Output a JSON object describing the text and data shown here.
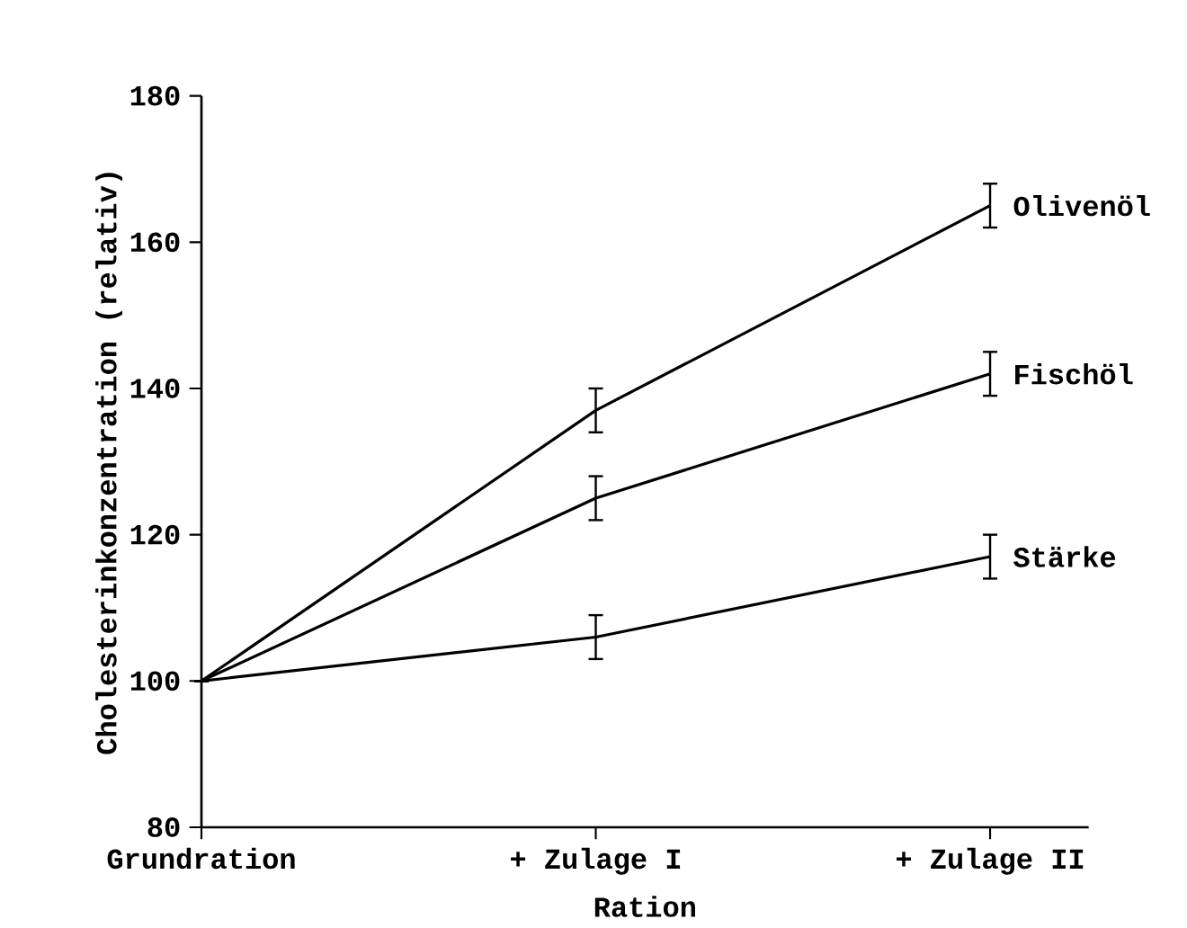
{
  "chart_data": {
    "type": "line",
    "xlabel": "Ration",
    "ylabel": "Cholesterinkonzentration (relativ)",
    "categories": [
      "Grundration",
      "+ Zulage I",
      "+ Zulage II"
    ],
    "series": [
      {
        "name": "Olivenöl",
        "color": "#000000",
        "values": [
          100,
          137,
          165
        ],
        "errors": [
          null,
          3,
          3
        ]
      },
      {
        "name": "Fischöl",
        "color": "#000000",
        "values": [
          100,
          125,
          142
        ],
        "errors": [
          null,
          3,
          3
        ]
      },
      {
        "name": "Stärke",
        "color": "#000000",
        "values": [
          100,
          106,
          117
        ],
        "errors": [
          null,
          3,
          3
        ]
      }
    ],
    "ylim": [
      80,
      180
    ],
    "yticks": [
      80,
      100,
      120,
      140,
      160,
      180
    ],
    "grid": false,
    "legend": false,
    "marker": "none",
    "line_style": "solid"
  }
}
